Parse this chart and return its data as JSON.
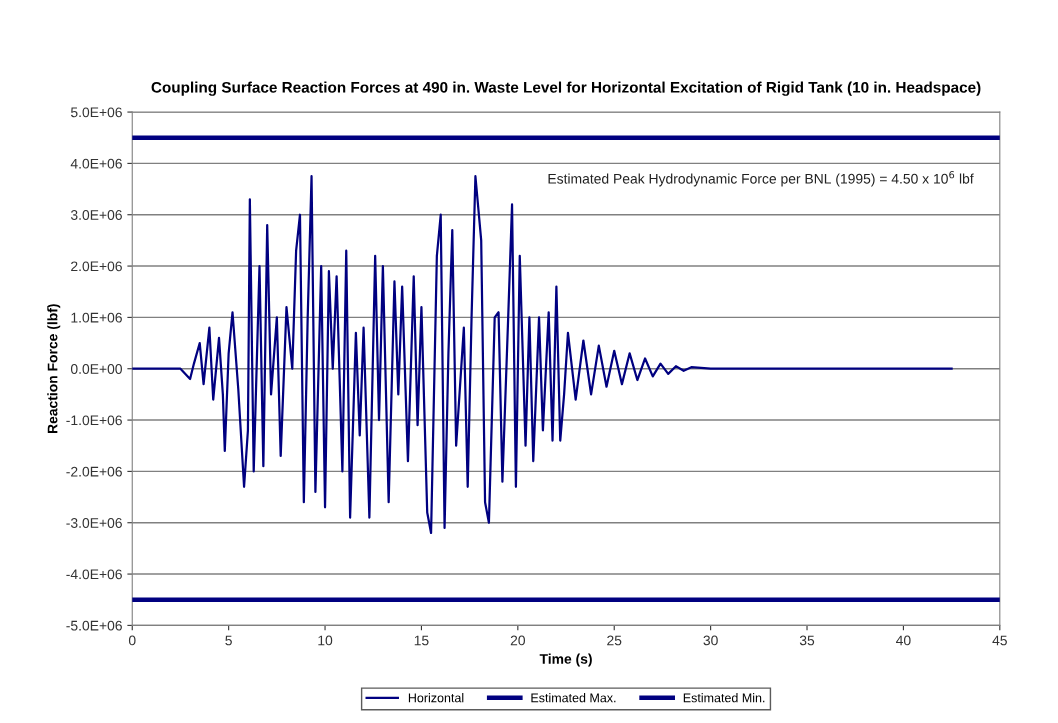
{
  "chart_data": {
    "type": "line",
    "title": "Coupling Surface Reaction Forces at 490 in. Waste Level for Horizontal Excitation of Rigid Tank (10 in. Headspace)",
    "xlabel": "Time (s)",
    "ylabel": "Reaction Force (lbf)",
    "annotations": [
      "Estimated Peak Hydrodynamic Force per BNL (1995) = 4.50 x 10$^{6}$ lbf"
    ],
    "series": [
      {
        "name": "Horizontal",
        "color": "#000080",
        "x": [
          0,
          2.5,
          3.0,
          3.2,
          3.5,
          3.7,
          4.0,
          4.2,
          4.5,
          4.7,
          4.8,
          5.0,
          5.2,
          5.5,
          5.8,
          6.0,
          6.1,
          6.3,
          6.6,
          6.8,
          7.0,
          7.2,
          7.5,
          7.7,
          8.0,
          8.3,
          8.5,
          8.7,
          8.9,
          9.1,
          9.3,
          9.5,
          9.8,
          10.0,
          10.2,
          10.4,
          10.6,
          10.9,
          11.1,
          11.3,
          11.6,
          11.8,
          12.0,
          12.3,
          12.6,
          12.8,
          13.0,
          13.3,
          13.6,
          13.8,
          14.0,
          14.3,
          14.6,
          14.8,
          15.0,
          15.3,
          15.5,
          15.8,
          16.0,
          16.2,
          16.4,
          16.6,
          16.8,
          17.2,
          17.4,
          17.6,
          17.8,
          18.1,
          18.3,
          18.5,
          18.8,
          19.0,
          19.2,
          19.5,
          19.7,
          19.9,
          20.1,
          20.4,
          20.6,
          20.8,
          21.1,
          21.3,
          21.6,
          21.8,
          22.0,
          22.2,
          22.4,
          22.6,
          23.0,
          23.4,
          23.8,
          24.2,
          24.6,
          25.0,
          25.4,
          25.8,
          26.2,
          26.6,
          27.0,
          27.4,
          27.8,
          28.2,
          28.6,
          29.0,
          30.0,
          42.5
        ],
        "values": [
          0,
          0,
          -200000,
          100000,
          500000,
          -300000,
          800000,
          -600000,
          600000,
          -500000,
          -1600000,
          300000,
          1100000,
          -400000,
          -2300000,
          -1200000,
          3300000,
          -2000000,
          2000000,
          -1900000,
          2800000,
          -500000,
          1000000,
          -1700000,
          1200000,
          0,
          2300000,
          3000000,
          -2600000,
          1000000,
          3750000,
          -2400000,
          2000000,
          -2700000,
          1900000,
          0,
          1800000,
          -2000000,
          2300000,
          -2900000,
          700000,
          -1300000,
          800000,
          -2900000,
          2200000,
          -1000000,
          2000000,
          -2600000,
          1700000,
          -500000,
          1600000,
          -1800000,
          1800000,
          -1100000,
          1200000,
          -2800000,
          -3200000,
          2200000,
          3000000,
          -3100000,
          300000,
          2700000,
          -1500000,
          800000,
          -2300000,
          1000000,
          3750000,
          2500000,
          -2600000,
          -3000000,
          1000000,
          1100000,
          -2200000,
          1000000,
          3200000,
          -2300000,
          2200000,
          -1500000,
          1000000,
          -1800000,
          1000000,
          -1200000,
          1100000,
          -1400000,
          1600000,
          -1400000,
          -500000,
          700000,
          -600000,
          550000,
          -500000,
          450000,
          -350000,
          350000,
          -300000,
          300000,
          -220000,
          200000,
          -150000,
          100000,
          -100000,
          50000,
          -40000,
          30000,
          0,
          0
        ]
      },
      {
        "name": "Estimated Max.",
        "color": "#000080",
        "x": [
          0,
          45
        ],
        "values": [
          4500000,
          4500000
        ]
      },
      {
        "name": "Estimated Min.",
        "color": "#000080",
        "x": [
          0,
          45
        ],
        "values": [
          -4500000,
          -4500000
        ]
      }
    ],
    "xlim": [
      0,
      45
    ],
    "xticks": [
      0,
      5,
      10,
      15,
      20,
      25,
      30,
      35,
      40,
      45
    ],
    "ylim": [
      -5000000,
      5000000
    ],
    "yticks": [
      {
        "value": -5000000,
        "label": "-5.0E+06"
      },
      {
        "value": -4000000,
        "label": "-4.0E+06"
      },
      {
        "value": -3000000,
        "label": "-3.0E+06"
      },
      {
        "value": -2000000,
        "label": "-2.0E+06"
      },
      {
        "value": -1000000,
        "label": "-1.0E+06"
      },
      {
        "value": 0,
        "label": "0.0E+00"
      },
      {
        "value": 1000000,
        "label": "1.0E+06"
      },
      {
        "value": 2000000,
        "label": "2.0E+06"
      },
      {
        "value": 3000000,
        "label": "3.0E+06"
      },
      {
        "value": 4000000,
        "label": "4.0E+06"
      },
      {
        "value": 5000000,
        "label": "5.0E+06"
      }
    ],
    "grid": "y",
    "legend": "bottom",
    "marker": "none",
    "line_style": "solid"
  }
}
